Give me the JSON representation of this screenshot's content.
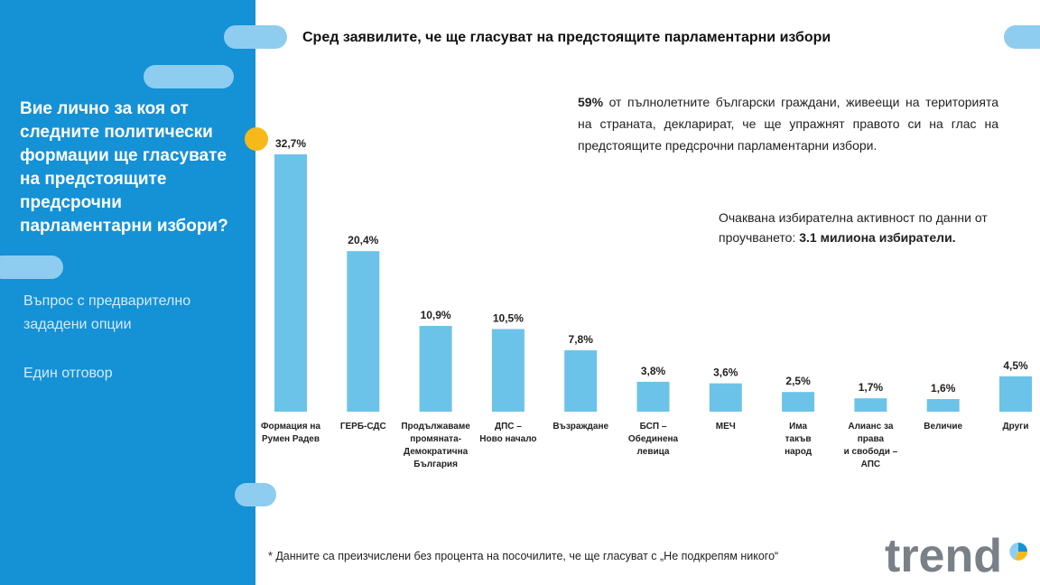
{
  "header": {
    "title": "Сред заявилите, че ще гласуват на предстоящите парламентарни избори"
  },
  "question": {
    "text": "Вие лично за коя от следните политически формации ще гласувате на предстоящите предсрочни парламентарни избори?",
    "note1": "Въпрос с предварително зададени опции",
    "note2": "Един отговор"
  },
  "info": {
    "highlight": "59%",
    "text": " от пълнолетните български граждани, живеещи на територията на страната, декларират, че ще упражнят правото си на глас на предстоящите предсрочни парламентарни избори."
  },
  "turnout": {
    "text": "Очаквана избирателна активност по данни от проучването: ",
    "highlight": "3.1 милиона избиратели."
  },
  "footnote": "* Данните са преизчислени без процента на посочилите, че ще гласуват с „Не подкрепям никого“",
  "logo": {
    "text": "trend",
    "icon": "trend-logo-pie-icon"
  },
  "colors": {
    "panel": "#1591d6",
    "bar": "#6cc3ea",
    "pill": "#8fcdf0",
    "accent_dot": "#f7b91a"
  },
  "chart_data": {
    "type": "bar",
    "categories": [
      [
        "Формация на",
        "Румен Радев"
      ],
      [
        "ГЕРБ-СДС"
      ],
      [
        "Продължаваме",
        "промяната-",
        "Демократична",
        "България"
      ],
      [
        "ДПС –",
        "Ново начало"
      ],
      [
        "Възраждане"
      ],
      [
        "БСП –",
        "Обединена",
        "левица"
      ],
      [
        "МЕЧ"
      ],
      [
        "Има",
        "такъв",
        "народ"
      ],
      [
        "Алианс за",
        "права",
        "и свободи –",
        "АПС"
      ],
      [
        "Величие"
      ],
      [
        "Други"
      ]
    ],
    "values": [
      32.7,
      20.4,
      10.9,
      10.5,
      7.8,
      3.8,
      3.6,
      2.5,
      1.7,
      1.6,
      4.5
    ],
    "value_labels": [
      "32,7%",
      "20,4%",
      "10,9%",
      "10,5%",
      "7,8%",
      "3,8%",
      "3,6%",
      "2,5%",
      "1,7%",
      "1,6%",
      "4,5%"
    ],
    "ylim": [
      0,
      32.7
    ],
    "grid": false,
    "legend": "none"
  }
}
